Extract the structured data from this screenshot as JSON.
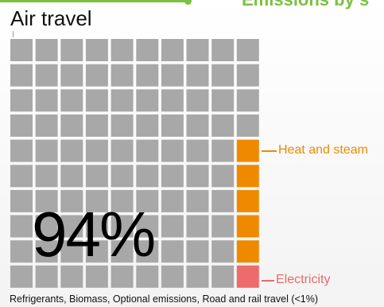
{
  "header": {
    "title": "Emissions by s"
  },
  "chart_data": {
    "type": "waffle",
    "title": "Air travel",
    "grid": {
      "rows": 10,
      "cols": 10
    },
    "main_percent_label": "94%",
    "segments": [
      {
        "name": "Air travel",
        "cells": 94,
        "color": "#a8a8a8"
      },
      {
        "name": "Heat and steam",
        "cells": 5,
        "color": "#ef8a00"
      },
      {
        "name": "Electricity",
        "cells": 1,
        "color": "#ec6b6b"
      }
    ],
    "annotations": {
      "heat": "Heat and steam",
      "electricity": "Electricity"
    },
    "footnote": "Refrigerants, Biomass, Optional emissions, Road and rail travel (<1%)"
  }
}
